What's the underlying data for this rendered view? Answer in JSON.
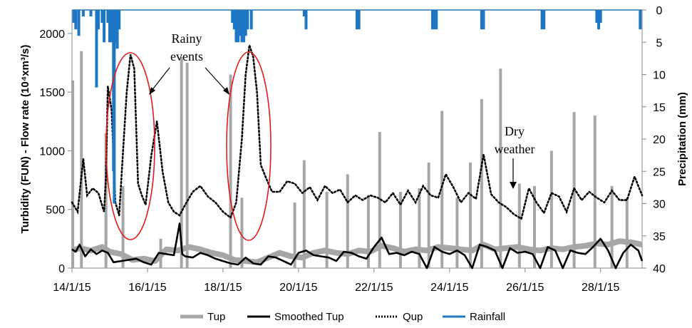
{
  "chart_data": {
    "type": "line",
    "title": "",
    "ylabel": "Turbidity (FUN) - Flow rate (10⁴xm³/s)",
    "y2label": "Precipitation (mm)",
    "x_ticks": [
      "14/1/15",
      "16/1/15",
      "18/1/15",
      "20/1/15",
      "22/1/15",
      "24/1/15",
      "26/1/15",
      "28/1/15"
    ],
    "xlim": [
      "14/1/15",
      "29/1/15 (≈ 29.1 Jan)"
    ],
    "ylim": [
      0,
      2200
    ],
    "y_ticks": [
      0,
      500,
      1000,
      1500,
      2000
    ],
    "y2lim": [
      40,
      0
    ],
    "y2_ticks": [
      0,
      5,
      10,
      15,
      20,
      25,
      30,
      35,
      40
    ],
    "y2_reversed": true,
    "grid": false,
    "legend_position": "bottom",
    "series": [
      {
        "name": "Tup",
        "color": "#a6a6a6",
        "style": "solid-thick",
        "baseline_x": [
          14.0,
          14.2,
          14.5,
          14.8,
          15.0,
          15.3,
          15.6,
          15.9,
          16.2,
          16.5,
          16.8,
          17.1,
          17.4,
          17.7,
          18.0,
          18.3,
          18.6,
          18.9,
          19.2,
          19.5,
          19.8,
          20.1,
          20.4,
          20.7,
          21.0,
          21.3,
          21.6,
          21.9,
          22.2,
          22.5,
          22.8,
          23.1,
          23.4,
          23.7,
          24.0,
          24.3,
          24.6,
          24.9,
          25.2,
          25.5,
          25.8,
          26.1,
          26.4,
          26.7,
          27.0,
          27.3,
          27.6,
          27.9,
          28.2,
          28.5,
          28.8,
          29.1
        ],
        "baseline_y": [
          150,
          170,
          150,
          180,
          140,
          120,
          70,
          80,
          60,
          160,
          150,
          180,
          160,
          130,
          110,
          70,
          60,
          50,
          90,
          130,
          100,
          90,
          130,
          150,
          130,
          120,
          150,
          140,
          190,
          170,
          140,
          160,
          150,
          180,
          170,
          160,
          150,
          200,
          160,
          170,
          180,
          160,
          150,
          170,
          160,
          180,
          190,
          210,
          200,
          230,
          220,
          200
        ],
        "spikes": [
          {
            "x": 14.02,
            "y": 1600
          },
          {
            "x": 14.25,
            "y": 1850
          },
          {
            "x": 14.9,
            "y": 1150
          },
          {
            "x": 15.35,
            "y": 700
          },
          {
            "x": 16.35,
            "y": 250
          },
          {
            "x": 16.9,
            "y": 1800
          },
          {
            "x": 17.05,
            "y": 1750
          },
          {
            "x": 18.2,
            "y": 1650
          },
          {
            "x": 18.5,
            "y": 600
          },
          {
            "x": 19.9,
            "y": 560
          },
          {
            "x": 20.15,
            "y": 920
          },
          {
            "x": 20.75,
            "y": 650
          },
          {
            "x": 21.3,
            "y": 800
          },
          {
            "x": 21.85,
            "y": 620
          },
          {
            "x": 22.15,
            "y": 1160
          },
          {
            "x": 22.7,
            "y": 650
          },
          {
            "x": 23.2,
            "y": 680
          },
          {
            "x": 23.45,
            "y": 900
          },
          {
            "x": 23.8,
            "y": 1340
          },
          {
            "x": 24.2,
            "y": 600
          },
          {
            "x": 24.55,
            "y": 900
          },
          {
            "x": 24.85,
            "y": 1440
          },
          {
            "x": 25.35,
            "y": 1700
          },
          {
            "x": 25.85,
            "y": 720
          },
          {
            "x": 26.25,
            "y": 700
          },
          {
            "x": 26.7,
            "y": 1000
          },
          {
            "x": 27.3,
            "y": 1330
          },
          {
            "x": 27.85,
            "y": 1300
          },
          {
            "x": 28.3,
            "y": 700
          },
          {
            "x": 28.7,
            "y": 600
          }
        ]
      },
      {
        "name": "Smoothed Tup",
        "color": "#000000",
        "style": "solid",
        "x": [
          14.0,
          14.1,
          14.2,
          14.35,
          14.5,
          14.65,
          14.8,
          14.95,
          15.1,
          15.3,
          15.5,
          15.7,
          15.9,
          16.1,
          16.3,
          16.5,
          16.7,
          16.85,
          16.92,
          17.0,
          17.2,
          17.4,
          17.6,
          17.8,
          18.0,
          18.2,
          18.4,
          18.6,
          18.8,
          19.0,
          19.2,
          19.4,
          19.6,
          19.8,
          20.0,
          20.2,
          20.4,
          20.6,
          20.8,
          21.0,
          21.2,
          21.4,
          21.6,
          21.8,
          22.0,
          22.2,
          22.4,
          22.6,
          22.8,
          23.0,
          23.2,
          23.4,
          23.6,
          23.8,
          24.0,
          24.2,
          24.4,
          24.6,
          24.8,
          25.0,
          25.2,
          25.4,
          25.6,
          25.8,
          26.0,
          26.2,
          26.4,
          26.6,
          26.8,
          27.0,
          27.2,
          27.4,
          27.6,
          27.8,
          28.0,
          28.2,
          28.4,
          28.6,
          28.8,
          29.0,
          29.1
        ],
        "y": [
          160,
          140,
          200,
          100,
          160,
          120,
          150,
          130,
          50,
          60,
          70,
          80,
          50,
          30,
          130,
          120,
          110,
          380,
          120,
          100,
          90,
          130,
          110,
          80,
          60,
          40,
          30,
          90,
          40,
          30,
          100,
          90,
          60,
          30,
          130,
          150,
          110,
          100,
          90,
          60,
          140,
          130,
          100,
          80,
          180,
          260,
          120,
          130,
          110,
          140,
          120,
          0,
          180,
          140,
          120,
          150,
          110,
          0,
          200,
          180,
          150,
          0,
          170,
          130,
          140,
          120,
          0,
          180,
          150,
          0,
          150,
          130,
          120,
          180,
          250,
          150,
          0,
          130,
          200,
          150,
          60
        ]
      },
      {
        "name": "Qup",
        "color": "#000000",
        "style": "dotted",
        "x": [
          14.0,
          14.15,
          14.25,
          14.3,
          14.4,
          14.55,
          14.7,
          14.85,
          14.9,
          14.95,
          15.05,
          15.15,
          15.25,
          15.35,
          15.45,
          15.55,
          15.65,
          15.75,
          15.85,
          15.95,
          16.1,
          16.25,
          16.4,
          16.55,
          16.7,
          16.85,
          17.0,
          17.2,
          17.4,
          17.6,
          17.8,
          18.0,
          18.2,
          18.35,
          18.5,
          18.6,
          18.7,
          18.8,
          18.9,
          19.0,
          19.15,
          19.3,
          19.5,
          19.7,
          19.9,
          20.1,
          20.3,
          20.5,
          20.7,
          20.9,
          21.1,
          21.3,
          21.5,
          21.7,
          21.9,
          22.1,
          22.3,
          22.5,
          22.7,
          22.9,
          23.1,
          23.3,
          23.5,
          23.7,
          23.9,
          24.1,
          24.3,
          24.5,
          24.7,
          24.9,
          25.1,
          25.3,
          25.5,
          25.7,
          25.9,
          26.1,
          26.3,
          26.5,
          26.7,
          26.9,
          27.1,
          27.3,
          27.5,
          27.7,
          27.9,
          28.1,
          28.3,
          28.5,
          28.7,
          28.9,
          29.1
        ],
        "y": [
          560,
          480,
          780,
          930,
          620,
          680,
          640,
          480,
          780,
          1550,
          1350,
          560,
          450,
          980,
          1500,
          1820,
          1700,
          720,
          620,
          540,
          960,
          1250,
          820,
          560,
          480,
          450,
          540,
          650,
          700,
          610,
          560,
          480,
          430,
          560,
          1100,
          1650,
          1900,
          1800,
          1500,
          880,
          760,
          650,
          650,
          740,
          720,
          640,
          690,
          580,
          700,
          640,
          670,
          560,
          620,
          580,
          620,
          600,
          560,
          640,
          540,
          660,
          560,
          700,
          620,
          600,
          800,
          690,
          560,
          640,
          590,
          970,
          630,
          560,
          520,
          460,
          420,
          680,
          560,
          470,
          640,
          610,
          480,
          680,
          580,
          650,
          600,
          560,
          660,
          580,
          580,
          780,
          620
        ]
      },
      {
        "name": "Rainfall",
        "color": "#1f77c4",
        "style": "bars-from-top",
        "axis": "right",
        "x": [
          14.05,
          14.1,
          14.18,
          14.3,
          14.5,
          14.65,
          14.7,
          14.8,
          14.85,
          14.95,
          15.0,
          15.05,
          15.1,
          15.12,
          15.15,
          15.2,
          15.25,
          18.25,
          18.3,
          18.35,
          18.4,
          18.45,
          18.5,
          18.55,
          18.6,
          18.65,
          18.75,
          20.15,
          20.2,
          21.55,
          21.6,
          23.55,
          23.6,
          23.65,
          24.85,
          24.9,
          26.45,
          26.5,
          27.9,
          27.95,
          28.0,
          29.05
        ],
        "y": [
          2,
          3,
          4,
          1,
          1,
          12,
          3,
          2,
          5,
          2,
          5,
          5,
          25,
          30,
          5,
          6,
          3,
          2,
          3,
          5,
          5,
          4,
          5,
          5,
          4,
          3,
          3,
          1,
          3,
          3,
          3,
          3,
          3,
          3,
          3,
          3,
          3,
          3,
          2,
          3,
          2,
          3
        ]
      }
    ],
    "annotations": [
      {
        "text": [
          "Rainy",
          "events"
        ]
      },
      {
        "text": [
          "Dry",
          "weather"
        ]
      }
    ],
    "legend": [
      "Tup",
      "Smoothed Tup",
      "Qup",
      "Rainfall"
    ]
  }
}
